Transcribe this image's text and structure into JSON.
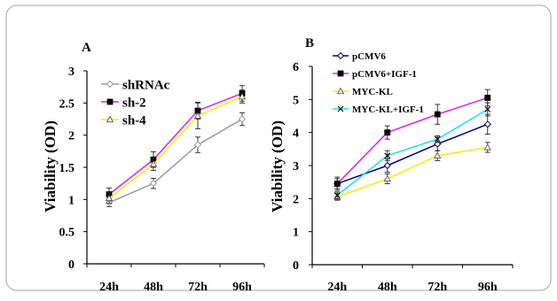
{
  "chart_data": [
    {
      "panel_label": "A",
      "type": "line",
      "categories": [
        "24h",
        "48h",
        "72h",
        "96h"
      ],
      "ylabel": "Viability (OD)",
      "ylim": [
        0,
        3
      ],
      "yticks": [
        "0",
        "0.5",
        "1",
        "1.5",
        "2",
        "2.5",
        "3"
      ],
      "grid": false,
      "legend_position": "top-left",
      "series": [
        {
          "name": "shRNAc",
          "color": "#999999",
          "marker": "diamond",
          "values": [
            0.95,
            1.25,
            1.85,
            2.25
          ],
          "errors": [
            0.06,
            0.08,
            0.12,
            0.1
          ]
        },
        {
          "name": "sh-2",
          "color": "#e020e0",
          "marker": "square",
          "values": [
            1.08,
            1.62,
            2.38,
            2.65
          ],
          "errors": [
            0.1,
            0.12,
            0.13,
            0.12
          ]
        },
        {
          "name": "sh-4",
          "color": "#f0f000",
          "marker": "triangle",
          "values": [
            1.02,
            1.55,
            2.3,
            2.6
          ],
          "errors": [
            0.08,
            0.1,
            0.2,
            0.1
          ]
        }
      ]
    },
    {
      "panel_label": "B",
      "type": "line",
      "categories": [
        "24h",
        "48h",
        "72h",
        "96h"
      ],
      "ylabel": "Viability (OD)",
      "ylim": [
        0,
        6
      ],
      "yticks": [
        "0",
        "1",
        "2",
        "3",
        "4",
        "5",
        "6"
      ],
      "grid": false,
      "legend_position": "top-left",
      "series": [
        {
          "name": "pCMV6",
          "color": "#000080",
          "marker": "diamond",
          "values": [
            2.45,
            3.0,
            3.65,
            4.25
          ],
          "errors": [
            0.15,
            0.2,
            0.2,
            0.3
          ]
        },
        {
          "name": "pCMV6+IGF-1",
          "color": "#e020e0",
          "marker": "square",
          "values": [
            2.45,
            4.0,
            4.55,
            5.05
          ],
          "errors": [
            0.2,
            0.2,
            0.3,
            0.25
          ]
        },
        {
          "name": "MYC-KL",
          "color": "#f0f000",
          "marker": "triangle",
          "values": [
            2.05,
            2.6,
            3.3,
            3.55
          ],
          "errors": [
            0.1,
            0.15,
            0.15,
            0.15
          ]
        },
        {
          "name": "MYC-KL+IGF-1",
          "color": "#20e0e0",
          "marker": "x",
          "values": [
            2.1,
            3.3,
            3.8,
            4.7
          ],
          "errors": [
            0.1,
            0.15,
            0.1,
            0.2
          ]
        }
      ]
    }
  ]
}
